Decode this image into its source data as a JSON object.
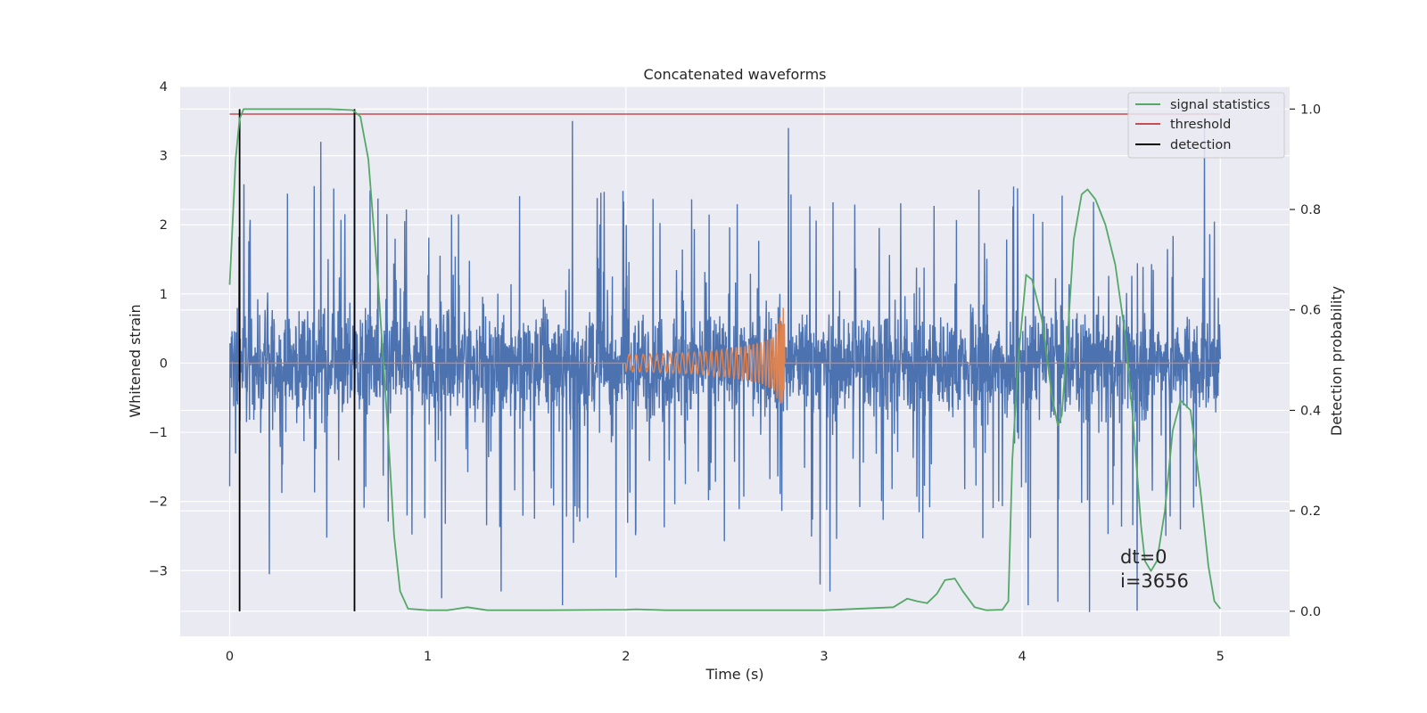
{
  "chart_data": {
    "type": "line",
    "title": "Concatenated waveforms",
    "xlabel": "Time (s)",
    "ylabel": "Whitened strain",
    "ylabel_right": "Detection probability",
    "xlim": [
      -0.25,
      5.35
    ],
    "ylim": [
      -3.95,
      4.0
    ],
    "ylim_right": [
      -0.05,
      1.045
    ],
    "x_ticks": [
      0,
      1,
      2,
      3,
      4,
      5
    ],
    "y_ticks": [
      -3,
      -2,
      -1,
      0,
      1,
      2,
      3,
      4
    ],
    "y_ticks_right": [
      0.0,
      0.2,
      0.4,
      0.6,
      0.8,
      1.0
    ],
    "x_tick_labels": [
      "0",
      "1",
      "2",
      "3",
      "4",
      "5"
    ],
    "y_tick_labels": [
      "−3",
      "−2",
      "−1",
      "0",
      "1",
      "2",
      "3",
      "4"
    ],
    "y_tick_labels_right": [
      "0.0",
      "0.2",
      "0.4",
      "0.6",
      "0.8",
      "1.0"
    ],
    "grid": true,
    "legend_position": "top-right",
    "colors": {
      "noise": "#4c72b0",
      "injection": "#dd8452",
      "signal_statistics": "#55a868",
      "threshold": "#c44e52",
      "detection": "#000000",
      "axes_background": "#eaeaf2"
    },
    "series": [
      {
        "name": "",
        "axis": "left",
        "style": "whitened noise strain, x from 0 to 5 s, bulk amplitude about ±0.7 with spikes",
        "x_range": [
          0,
          5
        ],
        "spikes": [
          {
            "x": 0.0,
            "y": -1.78
          },
          {
            "x": 0.2,
            "y": 2.86
          },
          {
            "x": 0.2,
            "y": -3.05
          },
          {
            "x": 0.46,
            "y": 3.2
          },
          {
            "x": 0.63,
            "y": 3.6
          },
          {
            "x": 1.73,
            "y": 3.5
          },
          {
            "x": 2.82,
            "y": 3.4
          },
          {
            "x": 1.68,
            "y": -3.5
          },
          {
            "x": 1.07,
            "y": -3.4
          },
          {
            "x": 1.37,
            "y": -3.3
          },
          {
            "x": 3.03,
            "y": -3.3
          },
          {
            "x": 4.58,
            "y": -3.58
          },
          {
            "x": 4.34,
            "y": -3.6
          },
          {
            "x": 4.92,
            "y": 3.5
          },
          {
            "x": 4.03,
            "y": -3.5
          },
          {
            "x": 4.18,
            "y": -3.45
          },
          {
            "x": 2.98,
            "y": -3.2
          },
          {
            "x": 1.95,
            "y": -3.1
          }
        ]
      },
      {
        "name": "",
        "axis": "left",
        "style": "injected chirp: zero except between 2.0 and 2.8 s",
        "x": [
          0,
          2.0,
          2.1,
          2.2,
          2.3,
          2.4,
          2.5,
          2.6,
          2.7,
          2.75,
          2.8,
          2.81,
          5.0
        ],
        "envelope": [
          0,
          0.13,
          0.13,
          0.14,
          0.15,
          0.17,
          0.2,
          0.25,
          0.32,
          0.4,
          0.88,
          0,
          0
        ]
      },
      {
        "name": "signal statistics",
        "axis": "right",
        "x": [
          0,
          0.03,
          0.05,
          0.07,
          0.1,
          0.3,
          0.5,
          0.62,
          0.66,
          0.7,
          0.75,
          0.8,
          0.83,
          0.86,
          0.9,
          1.0,
          1.1,
          1.2,
          1.3,
          1.6,
          2.0,
          2.05,
          2.2,
          2.6,
          3.0,
          3.35,
          3.42,
          3.47,
          3.52,
          3.57,
          3.61,
          3.66,
          3.7,
          3.76,
          3.82,
          3.9,
          3.93,
          3.95,
          3.98,
          4.02,
          4.05,
          4.1,
          4.15,
          4.18,
          4.2,
          4.23,
          4.26,
          4.3,
          4.33,
          4.37,
          4.42,
          4.47,
          4.52,
          4.56,
          4.6,
          4.62,
          4.65,
          4.68,
          4.72,
          4.76,
          4.8,
          4.85,
          4.9,
          4.94,
          4.97,
          5.0
        ],
        "y": [
          0.65,
          0.9,
          0.98,
          1.0,
          1.0,
          1.0,
          1.0,
          0.998,
          0.985,
          0.9,
          0.65,
          0.35,
          0.15,
          0.04,
          0.005,
          0.002,
          0.002,
          0.008,
          0.002,
          0.002,
          0.003,
          0.004,
          0.002,
          0.002,
          0.002,
          0.008,
          0.025,
          0.02,
          0.016,
          0.035,
          0.062,
          0.065,
          0.04,
          0.008,
          0.002,
          0.003,
          0.02,
          0.3,
          0.5,
          0.67,
          0.66,
          0.58,
          0.43,
          0.37,
          0.39,
          0.55,
          0.74,
          0.83,
          0.84,
          0.82,
          0.77,
          0.69,
          0.55,
          0.38,
          0.17,
          0.1,
          0.08,
          0.1,
          0.2,
          0.36,
          0.42,
          0.4,
          0.24,
          0.09,
          0.02,
          0.005
        ]
      },
      {
        "name": "threshold",
        "axis": "right",
        "x": [
          0,
          5
        ],
        "y": [
          0.99,
          0.99
        ]
      },
      {
        "name": "detection",
        "axis": "right",
        "x": [
          0.05,
          0.63
        ],
        "y_range": [
          0.0,
          1.0
        ]
      }
    ],
    "annotations": [
      "dt=0",
      "i=3656"
    ]
  }
}
